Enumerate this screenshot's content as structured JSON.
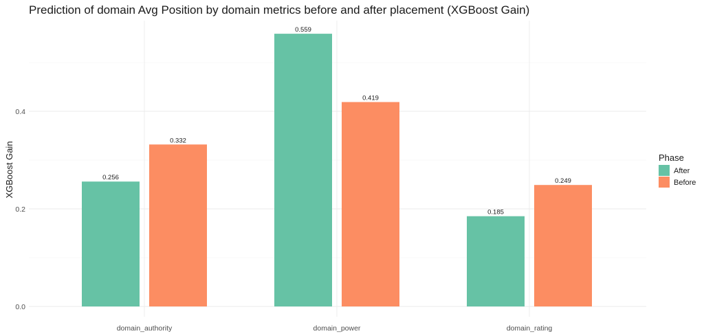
{
  "chart_data": {
    "type": "bar",
    "title": "Prediction of domain Avg Position by domain metrics before and after placement (XGBoost Gain)",
    "xlabel": "",
    "ylabel": "XGBoost Gain",
    "categories": [
      "domain_authority",
      "domain_power",
      "domain_rating"
    ],
    "series": [
      {
        "name": "After",
        "color": "#66c2a5",
        "values": [
          0.256,
          0.559,
          0.185
        ]
      },
      {
        "name": "Before",
        "color": "#fc8d62",
        "values": [
          0.332,
          0.419,
          0.249
        ]
      }
    ],
    "data_labels": [
      [
        "0.256",
        "0.559",
        "0.185"
      ],
      [
        "0.332",
        "0.419",
        "0.249"
      ]
    ],
    "ylim": [
      0,
      0.587
    ],
    "yticks": [
      0.0,
      0.2,
      0.4
    ],
    "ytick_labels": [
      "0.0",
      "0.2",
      "0.4"
    ],
    "grid": true,
    "legend": {
      "title": "Phase",
      "placement": "right"
    }
  }
}
